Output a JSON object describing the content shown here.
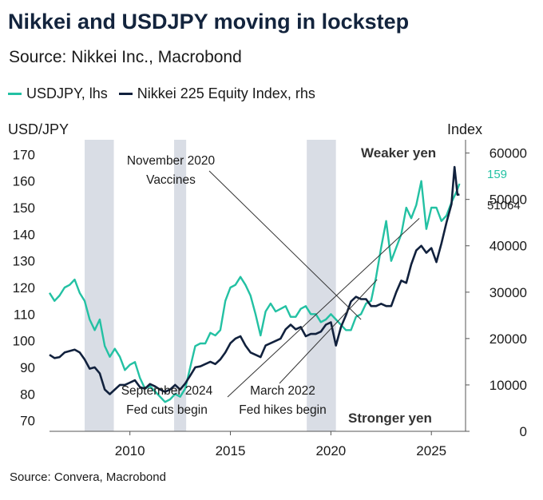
{
  "header": {
    "title": "Nikkei and USDJPY moving in lockstep",
    "subtitle": "Source: Nikkei Inc., Macrobond"
  },
  "footer": {
    "source": "Source: Convera, Macrobond"
  },
  "colors": {
    "usdjpy": "#23c1a3",
    "nikkei": "#11213d",
    "shading": "#d9dde5",
    "title": "#13243d"
  },
  "chart_data": {
    "type": "line",
    "title": "Nikkei and USDJPY moving in lockstep",
    "subtitle": "Source: Nikkei Inc., Macrobond",
    "xlim": [
      2006,
      2026.7
    ],
    "x_ticks": [
      2010,
      2015,
      2020,
      2025
    ],
    "x_tick_labels": [
      "2010",
      "2015",
      "2020",
      "2025"
    ],
    "y_left": {
      "label": "USD/JPY",
      "lim": [
        66,
        174
      ],
      "ticks": [
        70,
        80,
        90,
        100,
        110,
        120,
        130,
        140,
        150,
        160,
        170
      ],
      "tick_labels": [
        "70",
        "80",
        "90",
        "100",
        "110",
        "120",
        "130",
        "140",
        "150",
        "160",
        "170"
      ]
    },
    "y_right": {
      "label": "Index",
      "lim": [
        0,
        62000
      ],
      "ticks": [
        0,
        10000,
        20000,
        30000,
        40000,
        50000,
        60000
      ],
      "tick_labels": [
        "0",
        "10000",
        "20000",
        "30000",
        "40000",
        "50000",
        "60000"
      ]
    },
    "grid": false,
    "legend_position": "top-left",
    "shaded_periods": [
      [
        2007.75,
        2009.2
      ],
      [
        2012.2,
        2012.8
      ],
      [
        2018.8,
        2020.25
      ]
    ],
    "series": [
      {
        "name": "USDJPY, lhs",
        "axis": "left",
        "color": "#23c1a3",
        "last_value_label": "159",
        "x": [
          2006.0,
          2006.25,
          2006.5,
          2006.75,
          2007.0,
          2007.25,
          2007.5,
          2007.75,
          2008.0,
          2008.25,
          2008.5,
          2008.75,
          2009.0,
          2009.25,
          2009.5,
          2009.75,
          2010.0,
          2010.25,
          2010.5,
          2010.75,
          2011.0,
          2011.25,
          2011.5,
          2011.75,
          2012.0,
          2012.25,
          2012.5,
          2012.75,
          2013.0,
          2013.25,
          2013.5,
          2013.75,
          2014.0,
          2014.25,
          2014.5,
          2014.75,
          2015.0,
          2015.25,
          2015.5,
          2015.75,
          2016.0,
          2016.25,
          2016.5,
          2016.75,
          2017.0,
          2017.25,
          2017.5,
          2017.75,
          2018.0,
          2018.25,
          2018.5,
          2018.75,
          2019.0,
          2019.25,
          2019.5,
          2019.75,
          2020.0,
          2020.25,
          2020.5,
          2020.75,
          2021.0,
          2021.25,
          2021.5,
          2021.75,
          2022.0,
          2022.25,
          2022.5,
          2022.75,
          2023.0,
          2023.25,
          2023.5,
          2023.75,
          2024.0,
          2024.25,
          2024.5,
          2024.75,
          2025.0,
          2025.25,
          2025.5,
          2025.75,
          2026.0,
          2026.25,
          2026.4
        ],
        "values": [
          118,
          115,
          117,
          120,
          121,
          123,
          118,
          115,
          108,
          104,
          108,
          98,
          94,
          97,
          94,
          89,
          91,
          92,
          86,
          82,
          83,
          81,
          79,
          77,
          78,
          80,
          79,
          82,
          90,
          98,
          99,
          99,
          103,
          102,
          104,
          115,
          120,
          121,
          124,
          121,
          117,
          110,
          102,
          111,
          114,
          111,
          112,
          113,
          109,
          109,
          112,
          113,
          110,
          110,
          107,
          108,
          110,
          108,
          106,
          104,
          104,
          109,
          110,
          114,
          115,
          124,
          135,
          145,
          130,
          135,
          140,
          150,
          146,
          151,
          160,
          142,
          150,
          150,
          145,
          147,
          152,
          156,
          159
        ]
      },
      {
        "name": "Nikkei 225 Equity Index, rhs",
        "axis": "right",
        "color": "#11213d",
        "last_value_label": "51064",
        "x": [
          2006.0,
          2006.25,
          2006.5,
          2006.75,
          2007.0,
          2007.25,
          2007.5,
          2007.75,
          2008.0,
          2008.25,
          2008.5,
          2008.75,
          2009.0,
          2009.25,
          2009.5,
          2009.75,
          2010.0,
          2010.25,
          2010.5,
          2010.75,
          2011.0,
          2011.25,
          2011.5,
          2011.75,
          2012.0,
          2012.25,
          2012.5,
          2012.75,
          2013.0,
          2013.25,
          2013.5,
          2013.75,
          2014.0,
          2014.25,
          2014.5,
          2014.75,
          2015.0,
          2015.25,
          2015.5,
          2015.75,
          2016.0,
          2016.25,
          2016.5,
          2016.75,
          2017.0,
          2017.25,
          2017.5,
          2017.75,
          2018.0,
          2018.25,
          2018.5,
          2018.75,
          2019.0,
          2019.25,
          2019.5,
          2019.75,
          2020.0,
          2020.25,
          2020.5,
          2020.75,
          2021.0,
          2021.25,
          2021.5,
          2021.75,
          2022.0,
          2022.25,
          2022.5,
          2022.75,
          2023.0,
          2023.25,
          2023.5,
          2023.75,
          2024.0,
          2024.25,
          2024.5,
          2024.75,
          2025.0,
          2025.25,
          2025.5,
          2025.75,
          2026.0,
          2026.15,
          2026.3,
          2026.4
        ],
        "values": [
          16500,
          15800,
          16000,
          17000,
          17300,
          17600,
          17000,
          15500,
          13500,
          13800,
          12500,
          9000,
          8000,
          9000,
          10000,
          10000,
          10500,
          11000,
          9500,
          9200,
          10200,
          9700,
          9000,
          8500,
          9000,
          10000,
          9000,
          10300,
          12000,
          13800,
          14000,
          14500,
          15000,
          14500,
          15500,
          17000,
          19000,
          20000,
          20500,
          18500,
          17000,
          16500,
          16000,
          18500,
          19000,
          19500,
          20000,
          22000,
          23000,
          22000,
          22500,
          20500,
          21000,
          21000,
          21500,
          23000,
          23500,
          18500,
          22500,
          25000,
          28000,
          29000,
          28500,
          28500,
          27000,
          27000,
          27500,
          27000,
          27000,
          30000,
          32500,
          32000,
          36000,
          39000,
          40000,
          38500,
          39500,
          36500,
          40500,
          45000,
          49000,
          57000,
          51000,
          51064
        ]
      }
    ],
    "annotations": [
      {
        "text_lines": [
          "November 2020",
          "Vaccines"
        ]
      },
      {
        "text_lines": [
          "September 2024",
          "Fed cuts begin"
        ]
      },
      {
        "text_lines": [
          "March 2022",
          "Fed hikes begin"
        ]
      },
      {
        "text": "Weaker yen"
      },
      {
        "text": "Stronger yen"
      }
    ]
  }
}
